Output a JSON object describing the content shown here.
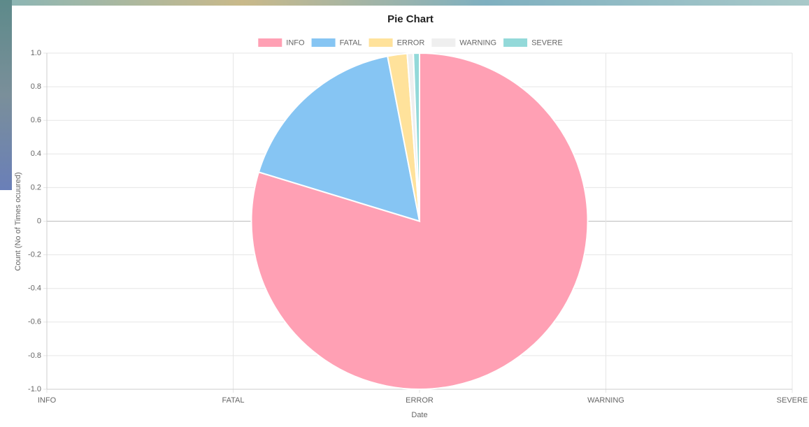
{
  "chart_data": {
    "type": "pie",
    "title": "Pie Chart",
    "categories": [
      "INFO",
      "FATAL",
      "ERROR",
      "WARNING",
      "SEVERE"
    ],
    "values": [
      680,
      147,
      16,
      5,
      5
    ],
    "colors": [
      "#ffa0b4",
      "#86c5f3",
      "#ffe29b",
      "#efefef",
      "#93d9d9"
    ],
    "x_label": "Date",
    "y_label": "Count (No of Times ocuured)",
    "ylim": [
      -1,
      1
    ],
    "yticks": [
      {
        "value": 1,
        "label": "1.0"
      },
      0.8,
      0.6,
      0.4,
      0.2,
      0,
      -0.2,
      -0.4,
      -0.6,
      -0.8,
      {
        "value": -1,
        "label": "-1.0"
      }
    ],
    "grid": true,
    "legend": "top"
  }
}
